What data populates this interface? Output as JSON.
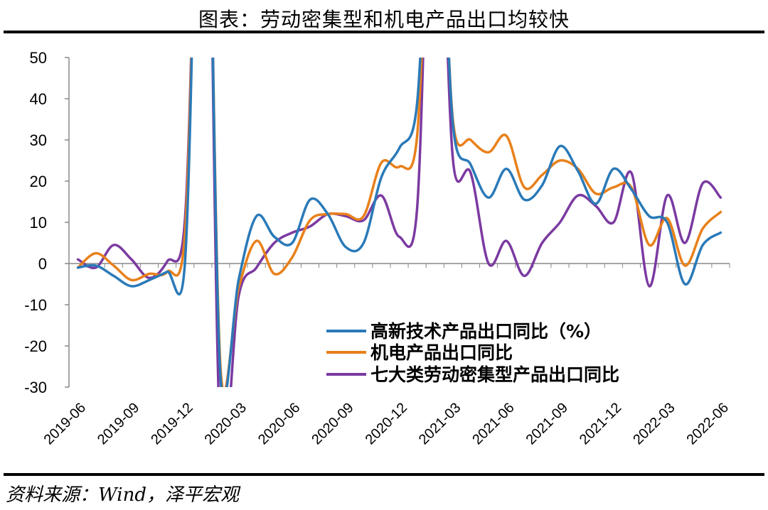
{
  "header": {
    "title": "图表：劳动密集型和机电产品出口均较快"
  },
  "footer": {
    "source": "资料来源：Wind，泽平宏观"
  },
  "chart_data": {
    "type": "line",
    "title": "图表：劳动密集型和机电产品出口均较快",
    "ylim": [
      -30,
      50
    ],
    "yticks": [
      50,
      40,
      30,
      20,
      10,
      0,
      -10,
      -20,
      -30
    ],
    "x_tick_labels": [
      "2019-06",
      "2019-09",
      "2019-12",
      "2020-03",
      "2020-06",
      "2020-09",
      "2020-12",
      "2021-03",
      "2021-06",
      "2021-09",
      "2021-12",
      "2022-03",
      "2022-06"
    ],
    "x": [
      "2019-06",
      "2019-07",
      "2019-08",
      "2019-09",
      "2019-10",
      "2019-11",
      "2019-12",
      "2020-01",
      "2020-02",
      "2020-03",
      "2020-04",
      "2020-05",
      "2020-06",
      "2020-07",
      "2020-08",
      "2020-09",
      "2020-10",
      "2020-11",
      "2020-12",
      "2021-01",
      "2021-02",
      "2021-03",
      "2021-04",
      "2021-05",
      "2021-06",
      "2021-07",
      "2021-08",
      "2021-09",
      "2021-10",
      "2021-11",
      "2021-12",
      "2022-01",
      "2022-02",
      "2022-03",
      "2022-04",
      "2022-05",
      "2022-06"
    ],
    "series": [
      {
        "name": "高新技术产品出口同比（%）",
        "color": "#2a7ab8",
        "values": [
          -1,
          -0.5,
          -3,
          -5.5,
          -4,
          -2,
          0.5,
          null,
          -28.5,
          -4,
          11.5,
          6.5,
          5,
          15.5,
          12,
          4,
          5,
          21,
          28,
          39,
          null,
          34,
          24,
          16,
          23,
          15.5,
          19,
          28.5,
          22.5,
          14.5,
          23,
          18,
          11.5,
          10,
          -5,
          4.5,
          7.5
        ]
      },
      {
        "name": "机电产品出口同比",
        "color": "#e8801a",
        "values": [
          -1,
          2.5,
          -0.5,
          -4,
          -2.5,
          -2,
          7.5,
          null,
          -26,
          -6,
          5.5,
          -2.5,
          1.5,
          10.5,
          12,
          12,
          11.5,
          24.5,
          23.5,
          31,
          null,
          35,
          30,
          27,
          31,
          18.5,
          21.5,
          25,
          23,
          17,
          18.5,
          18.5,
          4.5,
          11,
          -0.5,
          8.5,
          12.5
        ]
      },
      {
        "name": "七大类劳动密集型产品出口同比",
        "color": "#7b3aa1",
        "values": [
          1,
          -1,
          4.5,
          1,
          -3.5,
          0.5,
          11,
          null,
          -45,
          -8,
          -1,
          5,
          7.5,
          9,
          12,
          11.5,
          10.5,
          16.5,
          6.5,
          13.5,
          null,
          25.5,
          22,
          0,
          5.5,
          -3,
          5,
          10,
          16.5,
          14,
          10,
          22,
          -5.5,
          16.5,
          5,
          19.5,
          16
        ]
      }
    ],
    "break_at": "2021-02",
    "legend": {
      "position": "bottom-right"
    },
    "grid": false
  }
}
